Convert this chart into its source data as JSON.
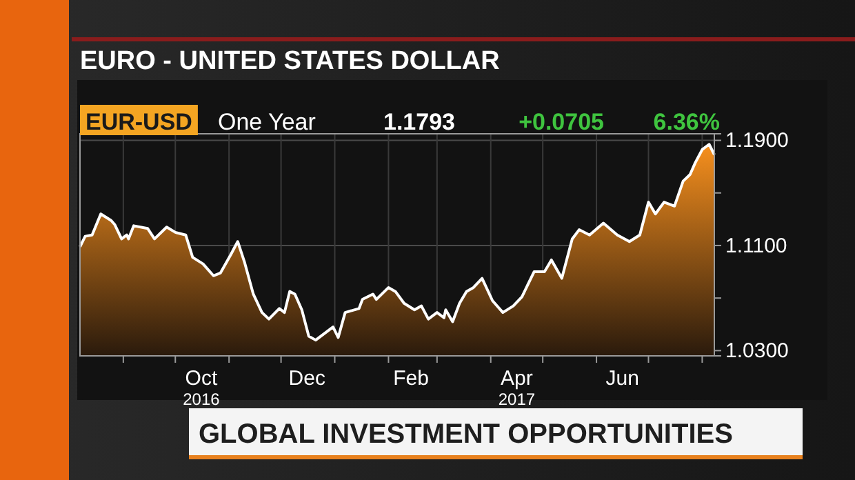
{
  "chart_data": {
    "type": "area",
    "title": "EURO - UNITED STATES DOLLAR",
    "annotations": [
      "EUR-USD",
      "One Year",
      "1.1793",
      "+0.0705",
      "6.36%",
      "GLOBAL INVESTMENT OPPORTUNITIES"
    ],
    "x": [
      "2016-08-07",
      "2016-08-10",
      "2016-08-14",
      "2016-08-19",
      "2016-08-25",
      "2016-08-27",
      "2016-08-31",
      "2016-09-03",
      "2016-09-04",
      "2016-09-07",
      "2016-09-15",
      "2016-09-19",
      "2016-09-26",
      "2016-10-01",
      "2016-10-07",
      "2016-10-11",
      "2016-10-17",
      "2016-10-23",
      "2016-10-27",
      "2016-11-02",
      "2016-11-06",
      "2016-11-10",
      "2016-11-15",
      "2016-11-20",
      "2016-11-24",
      "2016-11-30",
      "2016-12-03",
      "2016-12-06",
      "2016-12-09",
      "2016-12-13",
      "2016-12-17",
      "2016-12-21",
      "2016-12-26",
      "2016-12-31",
      "2017-01-03",
      "2017-01-07",
      "2017-01-15",
      "2017-01-17",
      "2017-01-23",
      "2017-01-25",
      "2017-02-01",
      "2017-02-05",
      "2017-02-10",
      "2017-02-16",
      "2017-02-20",
      "2017-02-24",
      "2017-03-01",
      "2017-03-05",
      "2017-03-06",
      "2017-03-10",
      "2017-03-14",
      "2017-03-18",
      "2017-03-22",
      "2017-03-27",
      "2017-04-02",
      "2017-04-08",
      "2017-04-14",
      "2017-04-19",
      "2017-04-26",
      "2017-05-02",
      "2017-05-06",
      "2017-05-12",
      "2017-05-18",
      "2017-05-22",
      "2017-05-28",
      "2017-06-05",
      "2017-06-13",
      "2017-06-20",
      "2017-06-26",
      "2017-07-01",
      "2017-07-05",
      "2017-07-10",
      "2017-07-16",
      "2017-07-21",
      "2017-07-25",
      "2017-07-28",
      "2017-08-01",
      "2017-08-05",
      "2017-08-08"
    ],
    "series": [
      {
        "color": "#f7901e",
        "values": [
          1.109,
          1.117,
          1.118,
          1.134,
          1.129,
          1.126,
          1.115,
          1.118,
          1.115,
          1.125,
          1.123,
          1.115,
          1.124,
          1.12,
          1.118,
          1.101,
          1.096,
          1.087,
          1.089,
          1.103,
          1.113,
          1.097,
          1.073,
          1.059,
          1.054,
          1.062,
          1.059,
          1.075,
          1.073,
          1.061,
          1.041,
          1.038,
          1.043,
          1.048,
          1.04,
          1.059,
          1.062,
          1.069,
          1.073,
          1.069,
          1.078,
          1.075,
          1.066,
          1.061,
          1.064,
          1.054,
          1.059,
          1.055,
          1.061,
          1.052,
          1.066,
          1.075,
          1.078,
          1.085,
          1.068,
          1.059,
          1.064,
          1.071,
          1.09,
          1.09,
          1.099,
          1.085,
          1.115,
          1.122,
          1.118,
          1.127,
          1.118,
          1.113,
          1.118,
          1.143,
          1.134,
          1.143,
          1.14,
          1.159,
          1.164,
          1.173,
          1.183,
          1.187,
          1.179
        ]
      }
    ],
    "xlim": [
      "2016-08-07",
      "2017-08-08"
    ],
    "xticks": [
      {
        "value": "2016-09-01",
        "label": null
      },
      {
        "value": "2016-10-01",
        "label": null
      },
      {
        "value": "2016-10-16",
        "label": "Oct\n2016"
      },
      {
        "value": "2016-11-01",
        "label": null
      },
      {
        "value": "2016-12-01",
        "label": null
      },
      {
        "value": "2016-12-16",
        "label": "Dec"
      },
      {
        "value": "2017-01-01",
        "label": null
      },
      {
        "value": "2017-02-01",
        "label": null
      },
      {
        "value": "2017-02-14",
        "label": "Feb"
      },
      {
        "value": "2017-03-01",
        "label": null
      },
      {
        "value": "2017-04-01",
        "label": null
      },
      {
        "value": "2017-04-16",
        "label": "Apr\n2017"
      },
      {
        "value": "2017-05-01",
        "label": null
      },
      {
        "value": "2017-06-01",
        "label": null
      },
      {
        "value": "2017-06-16",
        "label": "Jun"
      },
      {
        "value": "2017-07-01",
        "label": null
      },
      {
        "value": "2017-08-01",
        "label": null
      }
    ],
    "ylim": [
      1.026,
      1.195
    ],
    "yticks": [
      {
        "value": 1.19,
        "label": "1.1900"
      },
      {
        "value": 1.15,
        "label": null
      },
      {
        "value": 1.11,
        "label": "1.1100"
      },
      {
        "value": 1.07,
        "label": null
      },
      {
        "value": 1.03,
        "label": "1.0300"
      }
    ],
    "grid": true
  }
}
